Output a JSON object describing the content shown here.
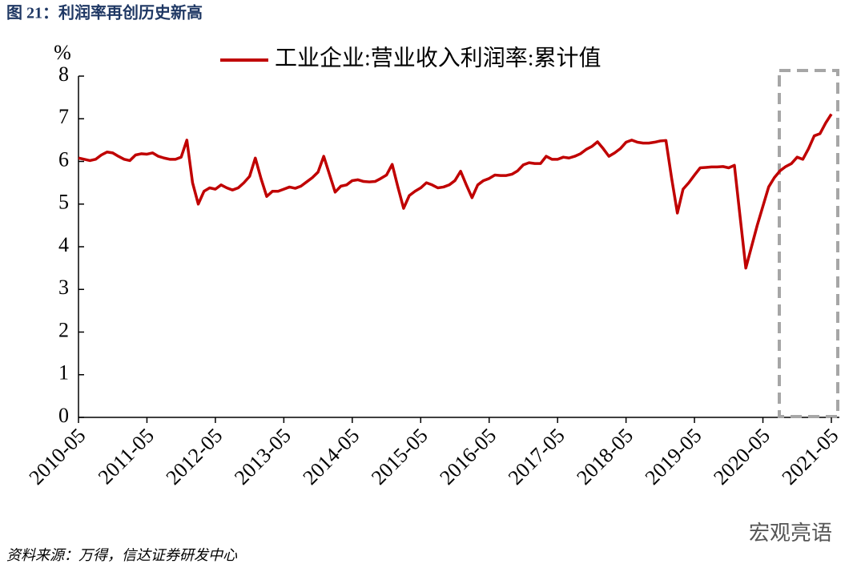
{
  "chart_data": {
    "type": "line",
    "title": "图 21：利润率再创历史新高",
    "y_label": "%",
    "source": "资料来源：万得，信达证券研发中心",
    "watermark": "宏观亮语",
    "categories": [
      "2010-05",
      null,
      null,
      null,
      null,
      null,
      null,
      null,
      null,
      null,
      null,
      null,
      "2011-05",
      null,
      null,
      null,
      null,
      null,
      null,
      null,
      null,
      null,
      null,
      null,
      "2012-05",
      null,
      null,
      null,
      null,
      null,
      null,
      null,
      null,
      null,
      null,
      null,
      "2013-05",
      null,
      null,
      null,
      null,
      null,
      null,
      null,
      null,
      null,
      null,
      null,
      "2014-05",
      null,
      null,
      null,
      null,
      null,
      null,
      null,
      null,
      null,
      null,
      null,
      "2015-05",
      null,
      null,
      null,
      null,
      null,
      null,
      null,
      null,
      null,
      null,
      null,
      "2016-05",
      null,
      null,
      null,
      null,
      null,
      null,
      null,
      null,
      null,
      null,
      null,
      "2017-05",
      null,
      null,
      null,
      null,
      null,
      null,
      null,
      null,
      null,
      null,
      null,
      "2018-05",
      null,
      null,
      null,
      null,
      null,
      null,
      null,
      null,
      null,
      null,
      null,
      "2019-05",
      null,
      null,
      null,
      null,
      null,
      null,
      null,
      null,
      null,
      null,
      null,
      "2020-05",
      null,
      null,
      null,
      null,
      null,
      null,
      null,
      null,
      null,
      null,
      null,
      "2021-05"
    ],
    "series": [
      {
        "name": "工业企业:营业收入利润率:累计值",
        "color": "#c00000",
        "values": [
          6.08,
          6.05,
          6.02,
          6.05,
          6.15,
          6.22,
          6.2,
          6.12,
          6.05,
          6.02,
          6.15,
          6.18,
          6.17,
          6.2,
          6.12,
          6.08,
          6.05,
          6.05,
          6.1,
          6.5,
          5.5,
          5.0,
          5.3,
          5.38,
          5.35,
          5.45,
          5.38,
          5.33,
          5.38,
          5.5,
          5.65,
          6.08,
          5.6,
          5.18,
          5.3,
          5.3,
          5.35,
          5.4,
          5.37,
          5.42,
          5.52,
          5.62,
          5.75,
          6.12,
          5.7,
          5.28,
          5.42,
          5.45,
          5.55,
          5.57,
          5.53,
          5.52,
          5.53,
          5.6,
          5.68,
          5.93,
          5.4,
          4.9,
          5.2,
          5.3,
          5.38,
          5.5,
          5.45,
          5.38,
          5.4,
          5.45,
          5.55,
          5.77,
          5.45,
          5.15,
          5.45,
          5.55,
          5.6,
          5.68,
          5.67,
          5.67,
          5.7,
          5.78,
          5.92,
          5.97,
          5.95,
          5.95,
          6.12,
          6.05,
          6.05,
          6.1,
          6.08,
          6.12,
          6.18,
          6.28,
          6.35,
          6.46,
          6.3,
          6.12,
          6.2,
          6.3,
          6.45,
          6.5,
          6.45,
          6.43,
          6.43,
          6.45,
          6.48,
          6.49,
          5.6,
          4.79,
          5.35,
          5.5,
          5.68,
          5.85,
          5.86,
          5.87,
          5.87,
          5.88,
          5.85,
          5.91,
          4.7,
          3.5,
          4.0,
          4.5,
          4.95,
          5.4,
          5.62,
          5.78,
          5.88,
          5.95,
          6.1,
          6.05,
          6.3,
          6.6,
          6.65,
          6.9,
          7.11
        ]
      }
    ],
    "ylim": [
      0,
      8
    ],
    "yticks": [
      0,
      1,
      2,
      3,
      4,
      5,
      6,
      7,
      8
    ]
  }
}
